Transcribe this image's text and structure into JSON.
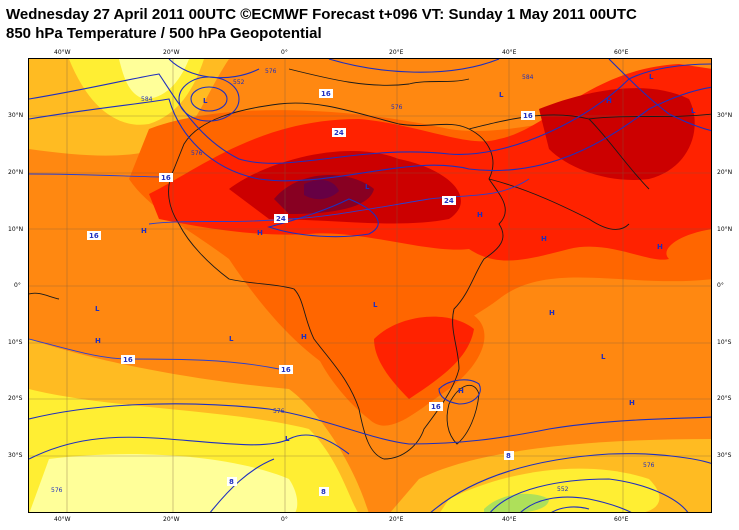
{
  "title_line1": "Wednesday 27 April 2011 00UTC ©ECMWF Forecast t+096 VT: Sunday 1 May 2011 00UTC",
  "title_line2": "850 hPa Temperature / 500 hPa Geopotential",
  "lon_labels": [
    "40°W",
    "20°W",
    "0°",
    "20°E",
    "40°E",
    "60°E"
  ],
  "lat_labels": [
    "30°N",
    "20°N",
    "10°N",
    "0°",
    "10°S",
    "20°S",
    "30°S"
  ],
  "temp_contour_labels": [
    "16",
    "16",
    "16",
    "16",
    "16",
    "24",
    "24",
    "24",
    "16",
    "16",
    "16",
    "8",
    "8",
    "8"
  ],
  "geo_contour_labels": [
    "552",
    "576",
    "584",
    "576",
    "576",
    "584",
    "576",
    "576",
    "576",
    "552"
  ],
  "pressure_centers": [
    "L",
    "L",
    "L",
    "L",
    "L",
    "L",
    "L",
    "L",
    "L",
    "L",
    "H",
    "H",
    "H",
    "H",
    "H",
    "H",
    "H",
    "H",
    "H",
    "H",
    "H"
  ],
  "colors": {
    "pale_yellow": "#ffff99",
    "yellow": "#ffee33",
    "orange_yellow": "#ffbb22",
    "orange": "#ff8811",
    "dark_orange": "#ff6600",
    "red": "#ff2200",
    "dark_red": "#cc0000",
    "maroon": "#880022",
    "purple": "#660044",
    "contour_blue": "#1f2fbf",
    "coastline": "#1a1a1a",
    "green": "#aee05a"
  }
}
